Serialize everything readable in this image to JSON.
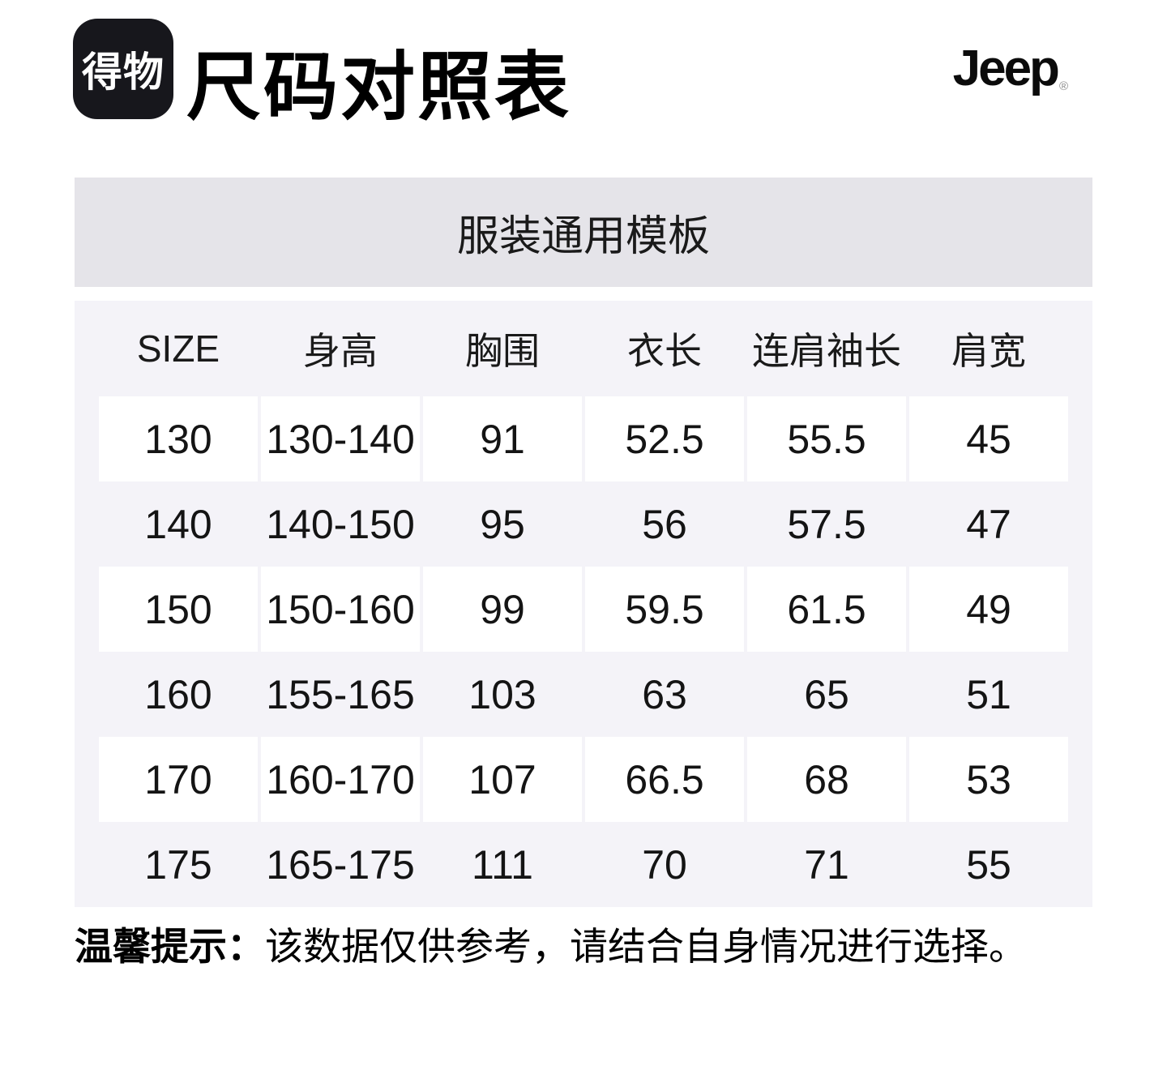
{
  "header": {
    "logo_text": "得物",
    "title": "尺码对照表",
    "brand": "Jeep",
    "brand_reg": "®"
  },
  "banner": {
    "label": "服装通用模板"
  },
  "table": {
    "columns": [
      "SIZE",
      "身高",
      "胸围",
      "衣长",
      "连肩袖长",
      "肩宽"
    ],
    "rows": [
      [
        "130",
        "130-140",
        "91",
        "52.5",
        "55.5",
        "45"
      ],
      [
        "140",
        "140-150",
        "95",
        "56",
        "57.5",
        "47"
      ],
      [
        "150",
        "150-160",
        "99",
        "59.5",
        "61.5",
        "49"
      ],
      [
        "160",
        "155-165",
        "103",
        "63",
        "65",
        "51"
      ],
      [
        "170",
        "160-170",
        "107",
        "66.5",
        "68",
        "53"
      ],
      [
        "175",
        "165-175",
        "111",
        "70",
        "71",
        "55"
      ]
    ]
  },
  "note": {
    "label": "温馨提示：",
    "text": "该数据仅供参考，请结合自身情况进行选择。"
  },
  "colors": {
    "banner_bg": "#E5E4E9",
    "table_bg": "#F4F3F8",
    "logo_bg": "#17171C"
  }
}
